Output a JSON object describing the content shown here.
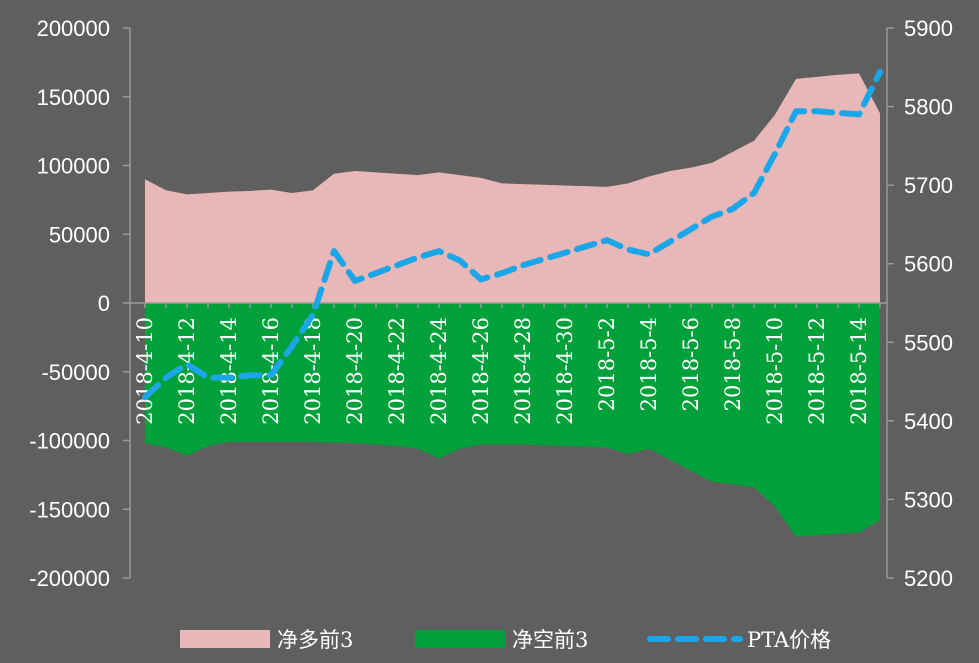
{
  "chart_data": {
    "type": "area",
    "categories": [
      "2018-4-10",
      "2018-4-11",
      "2018-4-12",
      "2018-4-13",
      "2018-4-14",
      "2018-4-15",
      "2018-4-16",
      "2018-4-17",
      "2018-4-18",
      "2018-4-19",
      "2018-4-20",
      "2018-4-21",
      "2018-4-22",
      "2018-4-23",
      "2018-4-24",
      "2018-4-25",
      "2018-4-26",
      "2018-4-27",
      "2018-4-28",
      "2018-4-29",
      "2018-4-30",
      "2018-5-1",
      "2018-5-2",
      "2018-5-3",
      "2018-5-4",
      "2018-5-5",
      "2018-5-6",
      "2018-5-7",
      "2018-5-8",
      "2018-5-9",
      "2018-5-10",
      "2018-5-11",
      "2018-5-12",
      "2018-5-13",
      "2018-5-14",
      "2018-5-15"
    ],
    "x_tick_labels": [
      "2018-4-10",
      "2018-4-12",
      "2018-4-14",
      "2018-4-16",
      "2018-4-18",
      "2018-4-20",
      "2018-4-22",
      "2018-4-24",
      "2018-4-26",
      "2018-4-28",
      "2018-4-30",
      "2018-5-2",
      "2018-5-4",
      "2018-5-6",
      "2018-5-8",
      "2018-5-10",
      "2018-5-12",
      "2018-5-14"
    ],
    "series": [
      {
        "name": "净多前3",
        "type": "area",
        "axis": "left",
        "color": "#e8b7b7",
        "values": [
          90000,
          82000,
          79000,
          80000,
          81000,
          81500,
          82500,
          80000,
          82000,
          94000,
          96000,
          95000,
          94000,
          93000,
          95000,
          93000,
          91000,
          87000,
          86500,
          86000,
          85500,
          85000,
          84500,
          87000,
          92000,
          96000,
          98500,
          102000,
          110000,
          118000,
          137000,
          163000,
          164500,
          166000,
          167000,
          138000
        ]
      },
      {
        "name": "净空前3",
        "type": "area",
        "axis": "left",
        "color": "#00a03a",
        "values": [
          -102000,
          -105000,
          -111000,
          -104000,
          -101000,
          -101000,
          -101000,
          -101000,
          -101000,
          -101500,
          -102000,
          -103000,
          -104000,
          -106000,
          -113000,
          -106000,
          -103000,
          -103000,
          -103000,
          -103500,
          -104000,
          -104500,
          -105000,
          -110000,
          -106000,
          -114000,
          -122000,
          -130000,
          -132000,
          -134000,
          -148000,
          -170000,
          -169000,
          -168000,
          -167000,
          -158000
        ]
      },
      {
        "name": "PTA价格",
        "type": "line",
        "axis": "right",
        "color": "#1aa6e8",
        "values": [
          5430,
          5455,
          5472,
          5455,
          5455,
          5458,
          5458,
          5495,
          5535,
          5616,
          5578,
          5588,
          5598,
          5608,
          5616,
          5604,
          5580,
          5588,
          5598,
          5606,
          5614,
          5622,
          5630,
          5618,
          5612,
          5628,
          5644,
          5660,
          5670,
          5690,
          5740,
          5794,
          5794,
          5792,
          5790,
          5844
        ]
      }
    ],
    "y_left": {
      "min": -200000,
      "max": 200000,
      "ticks": [
        -200000,
        -150000,
        -100000,
        -50000,
        0,
        50000,
        100000,
        150000,
        200000
      ]
    },
    "y_right": {
      "min": 5200,
      "max": 5900,
      "ticks": [
        5200,
        5300,
        5400,
        5500,
        5600,
        5700,
        5800,
        5900
      ]
    },
    "legend": {
      "position": "bottom",
      "items": [
        "净多前3",
        "净空前3",
        "PTA价格"
      ]
    },
    "background": "#5f5f5f",
    "axis_color": "#9a9a9a",
    "grid": false
  }
}
